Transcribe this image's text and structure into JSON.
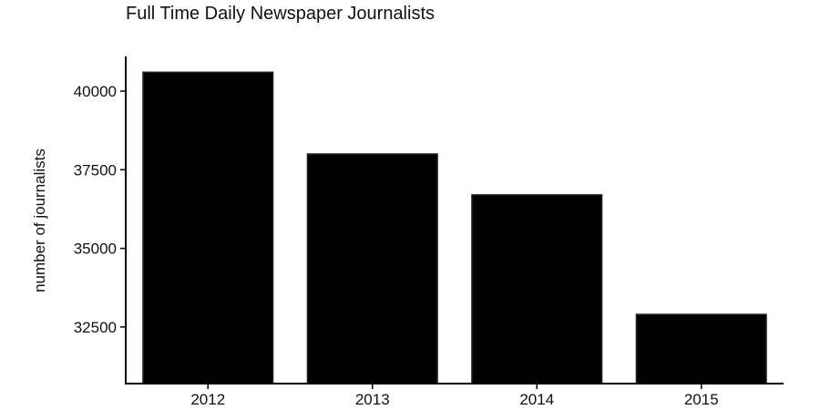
{
  "chart_data": {
    "type": "bar",
    "title": "Full Time Daily Newspaper Journalists",
    "xlabel": "",
    "ylabel": "number of journalists",
    "categories": [
      "2012",
      "2013",
      "2014",
      "2015"
    ],
    "values": [
      40600,
      38000,
      36700,
      32900
    ],
    "ylim": [
      30700,
      41100
    ],
    "ybase": 30700,
    "yticks": [
      32500,
      35000,
      37500,
      40000
    ],
    "grid": false,
    "legend": "none",
    "colors": {
      "bar_fill": "#000000",
      "bar_stroke": "#222222",
      "axis": "#000000"
    }
  }
}
